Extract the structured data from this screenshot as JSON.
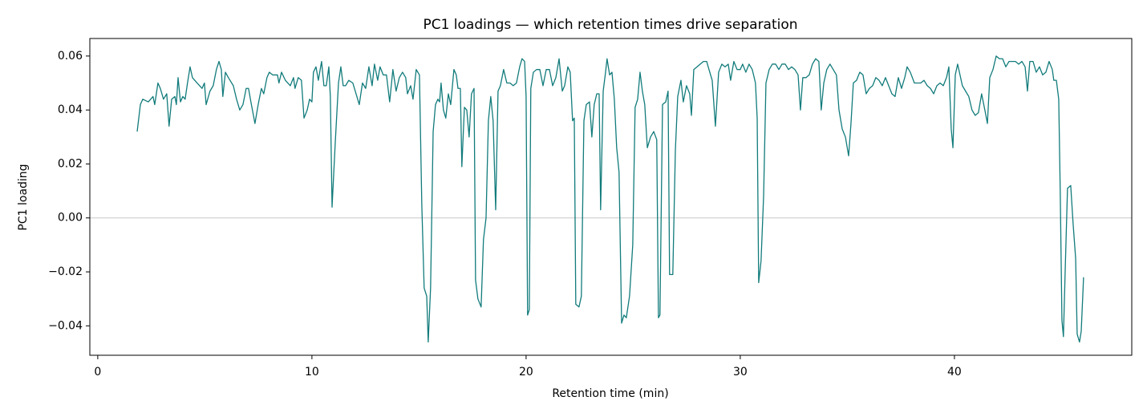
{
  "chart_data": {
    "type": "line",
    "title": "PC1 loadings — which retention times drive separation",
    "x_label": "Retention time (min)",
    "y_label": "PC1 loading",
    "color": "#127b7b",
    "hline": 0,
    "hline_color": "#c8c8c8",
    "xlim": [
      -0.37,
      48.28
    ],
    "ylim": [
      -0.0509,
      0.0665
    ],
    "xticks": [
      0,
      10,
      20,
      30,
      40
    ],
    "yticks": [
      {
        "value": -0.04,
        "label": "−0.04"
      },
      {
        "value": -0.02,
        "label": "−0.02"
      },
      {
        "value": 0,
        "label": "0.00"
      },
      0.02,
      0.04,
      0.06
    ],
    "x": [
      1.84,
      1.99,
      2.1,
      2.36,
      2.58,
      2.66,
      2.81,
      2.92,
      3.07,
      3.22,
      3.33,
      3.45,
      3.6,
      3.67,
      3.75,
      3.86,
      3.97,
      4.08,
      4.19,
      4.31,
      4.42,
      4.64,
      4.87,
      4.98,
      5.06,
      5.24,
      5.39,
      5.54,
      5.66,
      5.77,
      5.84,
      5.96,
      6.1,
      6.33,
      6.48,
      6.63,
      6.78,
      6.93,
      7.04,
      7.15,
      7.34,
      7.49,
      7.64,
      7.75,
      7.9,
      8.01,
      8.16,
      8.39,
      8.46,
      8.58,
      8.76,
      8.99,
      9.14,
      9.21,
      9.36,
      9.51,
      9.63,
      9.78,
      9.89,
      10.0,
      10.07,
      10.19,
      10.3,
      10.45,
      10.56,
      10.67,
      10.79,
      10.86,
      10.94,
      11.09,
      11.24,
      11.35,
      11.46,
      11.57,
      11.72,
      11.91,
      12.06,
      12.21,
      12.36,
      12.51,
      12.66,
      12.81,
      12.92,
      13.07,
      13.18,
      13.33,
      13.48,
      13.63,
      13.78,
      13.93,
      14.08,
      14.23,
      14.38,
      14.46,
      14.61,
      14.72,
      14.87,
      15.02,
      15.13,
      15.24,
      15.36,
      15.43,
      15.54,
      15.66,
      15.77,
      15.88,
      15.96,
      16.03,
      16.14,
      16.25,
      16.37,
      16.48,
      16.63,
      16.74,
      16.82,
      16.93,
      17.0,
      17.12,
      17.23,
      17.34,
      17.45,
      17.57,
      17.64,
      17.75,
      17.9,
      18.01,
      18.13,
      18.24,
      18.35,
      18.46,
      18.58,
      18.69,
      18.8,
      18.95,
      19.1,
      19.25,
      19.4,
      19.55,
      19.7,
      19.81,
      19.93,
      20.0,
      20.07,
      20.15,
      20.22,
      20.34,
      20.49,
      20.64,
      20.79,
      20.94,
      21.09,
      21.24,
      21.39,
      21.54,
      21.69,
      21.8,
      21.95,
      22.06,
      22.17,
      22.25,
      22.32,
      22.47,
      22.58,
      22.7,
      22.81,
      22.96,
      23.07,
      23.18,
      23.3,
      23.41,
      23.48,
      23.6,
      23.71,
      23.78,
      23.9,
      24.01,
      24.12,
      24.23,
      24.34,
      24.46,
      24.57,
      24.68,
      24.83,
      24.98,
      25.09,
      25.21,
      25.32,
      25.43,
      25.54,
      25.66,
      25.81,
      25.96,
      26.1,
      26.18,
      26.25,
      26.37,
      26.52,
      26.63,
      26.7,
      26.85,
      26.97,
      27.08,
      27.23,
      27.34,
      27.49,
      27.64,
      27.72,
      27.83,
      27.98,
      28.13,
      28.28,
      28.43,
      28.54,
      28.69,
      28.84,
      28.99,
      29.14,
      29.29,
      29.44,
      29.55,
      29.7,
      29.85,
      30.0,
      30.11,
      30.26,
      30.41,
      30.56,
      30.71,
      30.79,
      30.86,
      30.97,
      31.09,
      31.2,
      31.35,
      31.5,
      31.65,
      31.8,
      31.95,
      32.1,
      32.25,
      32.4,
      32.55,
      32.7,
      32.81,
      32.92,
      33.07,
      33.22,
      33.37,
      33.52,
      33.67,
      33.78,
      33.9,
      34.04,
      34.19,
      34.34,
      34.49,
      34.61,
      34.76,
      34.91,
      35.06,
      35.17,
      35.28,
      35.43,
      35.58,
      35.73,
      35.88,
      36.03,
      36.18,
      36.33,
      36.48,
      36.63,
      36.78,
      36.93,
      37.08,
      37.23,
      37.38,
      37.53,
      37.68,
      37.79,
      37.94,
      38.13,
      38.28,
      38.43,
      38.58,
      38.73,
      38.88,
      39.03,
      39.18,
      39.33,
      39.48,
      39.63,
      39.74,
      39.85,
      39.93,
      40.04,
      40.15,
      40.26,
      40.37,
      40.52,
      40.67,
      40.82,
      40.97,
      41.12,
      41.27,
      41.42,
      41.54,
      41.65,
      41.8,
      41.95,
      42.1,
      42.25,
      42.4,
      42.55,
      42.7,
      42.85,
      43.0,
      43.15,
      43.3,
      43.41,
      43.52,
      43.67,
      43.82,
      43.97,
      44.12,
      44.27,
      44.42,
      44.57,
      44.64,
      44.76,
      44.87,
      44.94,
      45.02,
      45.09,
      45.17,
      45.28,
      45.43,
      45.54,
      45.66,
      45.73,
      45.84,
      45.92,
      46.03
    ],
    "values": [
      0.032,
      0.042,
      0.044,
      0.043,
      0.045,
      0.042,
      0.05,
      0.048,
      0.044,
      0.046,
      0.034,
      0.044,
      0.045,
      0.042,
      0.052,
      0.043,
      0.045,
      0.044,
      0.05,
      0.056,
      0.052,
      0.05,
      0.048,
      0.05,
      0.042,
      0.047,
      0.049,
      0.055,
      0.058,
      0.055,
      0.045,
      0.054,
      0.052,
      0.049,
      0.044,
      0.04,
      0.042,
      0.048,
      0.048,
      0.043,
      0.035,
      0.042,
      0.048,
      0.046,
      0.052,
      0.054,
      0.053,
      0.053,
      0.05,
      0.054,
      0.051,
      0.049,
      0.052,
      0.048,
      0.052,
      0.051,
      0.037,
      0.04,
      0.044,
      0.043,
      0.054,
      0.056,
      0.051,
      0.058,
      0.049,
      0.049,
      0.056,
      0.045,
      0.004,
      0.028,
      0.05,
      0.056,
      0.049,
      0.049,
      0.051,
      0.05,
      0.046,
      0.042,
      0.05,
      0.048,
      0.056,
      0.049,
      0.057,
      0.051,
      0.056,
      0.053,
      0.053,
      0.043,
      0.055,
      0.047,
      0.052,
      0.054,
      0.052,
      0.046,
      0.049,
      0.044,
      0.055,
      0.053,
      0.005,
      -0.026,
      -0.029,
      -0.046,
      -0.026,
      0.032,
      0.042,
      0.044,
      0.043,
      0.05,
      0.04,
      0.037,
      0.046,
      0.042,
      0.055,
      0.053,
      0.048,
      0.048,
      0.019,
      0.041,
      0.04,
      0.03,
      0.046,
      0.048,
      -0.023,
      -0.03,
      -0.033,
      -0.008,
      0.0,
      0.036,
      0.045,
      0.036,
      0.003,
      0.047,
      0.049,
      0.055,
      0.05,
      0.05,
      0.049,
      0.05,
      0.056,
      0.059,
      0.058,
      0.045,
      -0.036,
      -0.034,
      0.048,
      0.054,
      0.055,
      0.055,
      0.049,
      0.055,
      0.055,
      0.049,
      0.052,
      0.059,
      0.047,
      0.049,
      0.056,
      0.054,
      0.036,
      0.037,
      -0.032,
      -0.033,
      -0.029,
      0.036,
      0.042,
      0.043,
      0.03,
      0.042,
      0.046,
      0.046,
      0.003,
      0.047,
      0.054,
      0.059,
      0.053,
      0.054,
      0.044,
      0.026,
      0.017,
      -0.039,
      -0.036,
      -0.037,
      -0.029,
      -0.01,
      0.041,
      0.044,
      0.054,
      0.047,
      0.042,
      0.026,
      0.03,
      0.032,
      0.029,
      -0.037,
      -0.036,
      0.042,
      0.043,
      0.047,
      -0.021,
      -0.021,
      0.025,
      0.045,
      0.051,
      0.043,
      0.049,
      0.046,
      0.038,
      0.055,
      0.056,
      0.057,
      0.058,
      0.058,
      0.055,
      0.051,
      0.034,
      0.054,
      0.057,
      0.056,
      0.057,
      0.051,
      0.058,
      0.055,
      0.055,
      0.057,
      0.054,
      0.057,
      0.055,
      0.05,
      0.037,
      -0.024,
      -0.016,
      0.008,
      0.05,
      0.055,
      0.057,
      0.057,
      0.055,
      0.057,
      0.057,
      0.055,
      0.056,
      0.055,
      0.053,
      0.04,
      0.052,
      0.052,
      0.053,
      0.057,
      0.059,
      0.058,
      0.04,
      0.05,
      0.055,
      0.057,
      0.055,
      0.053,
      0.04,
      0.033,
      0.03,
      0.023,
      0.035,
      0.05,
      0.051,
      0.054,
      0.053,
      0.046,
      0.048,
      0.049,
      0.052,
      0.051,
      0.049,
      0.052,
      0.049,
      0.046,
      0.045,
      0.052,
      0.048,
      0.052,
      0.056,
      0.054,
      0.05,
      0.05,
      0.05,
      0.051,
      0.049,
      0.048,
      0.046,
      0.049,
      0.05,
      0.049,
      0.052,
      0.056,
      0.033,
      0.026,
      0.053,
      0.057,
      0.053,
      0.049,
      0.047,
      0.045,
      0.04,
      0.038,
      0.039,
      0.046,
      0.04,
      0.035,
      0.052,
      0.055,
      0.06,
      0.059,
      0.059,
      0.056,
      0.058,
      0.058,
      0.058,
      0.057,
      0.058,
      0.056,
      0.047,
      0.058,
      0.058,
      0.054,
      0.056,
      0.053,
      0.054,
      0.058,
      0.055,
      0.051,
      0.051,
      0.044,
      0.01,
      -0.038,
      -0.044,
      -0.02,
      0.011,
      0.012,
      -0.002,
      -0.015,
      -0.043,
      -0.046,
      -0.042,
      -0.022
    ]
  }
}
